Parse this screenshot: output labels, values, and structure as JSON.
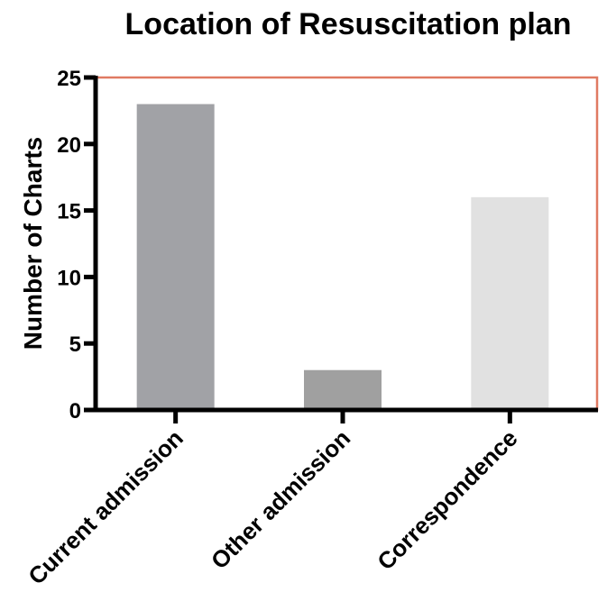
{
  "chart_data": {
    "type": "bar",
    "title": "Location of Resuscitation plan",
    "xlabel": "",
    "ylabel": "Number of Charts",
    "categories": [
      "Current admission",
      "Other admission",
      "Correspondence"
    ],
    "values": [
      23,
      3,
      16
    ],
    "ylim": [
      0,
      25
    ],
    "yticks": [
      0,
      5,
      10,
      15,
      20,
      25
    ],
    "ytick_labels": [
      "0",
      "5",
      "10",
      "15",
      "20",
      "25"
    ],
    "bar_colors": [
      "#a1a2a6",
      "#a0a0a0",
      "#e1e1e1"
    ],
    "frame_color": "#e07a62",
    "axis_color": "#000000",
    "grid": false,
    "legend": "none"
  }
}
